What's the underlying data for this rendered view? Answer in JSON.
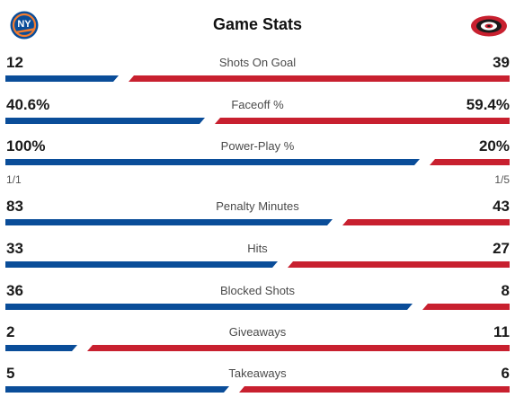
{
  "header": {
    "title": "Game Stats"
  },
  "teams": {
    "left": {
      "logo_icon": "islanders-logo-icon",
      "logo_text": "NY",
      "color": "#0a4d99"
    },
    "right": {
      "logo_icon": "hurricanes-logo-icon",
      "color": "#c8202f"
    }
  },
  "stats": [
    {
      "label": "Shots On Goal",
      "left": "12",
      "right": "39",
      "left_share": 0.235
    },
    {
      "label": "Faceoff %",
      "left": "40.6%",
      "right": "59.4%",
      "left_share": 0.406
    },
    {
      "label": "Power-Play %",
      "left": "100%",
      "right": "20%",
      "left_share": 0.833,
      "left_sub": "1/1",
      "right_sub": "1/5"
    },
    {
      "label": "Penalty Minutes",
      "left": "83",
      "right": "43",
      "left_share": 0.659
    },
    {
      "label": "Hits",
      "left": "33",
      "right": "27",
      "left_share": 0.55
    },
    {
      "label": "Blocked Shots",
      "left": "36",
      "right": "8",
      "left_share": 0.818
    },
    {
      "label": "Giveaways",
      "left": "2",
      "right": "11",
      "left_share": 0.154
    },
    {
      "label": "Takeaways",
      "left": "5",
      "right": "6",
      "left_share": 0.455
    }
  ]
}
